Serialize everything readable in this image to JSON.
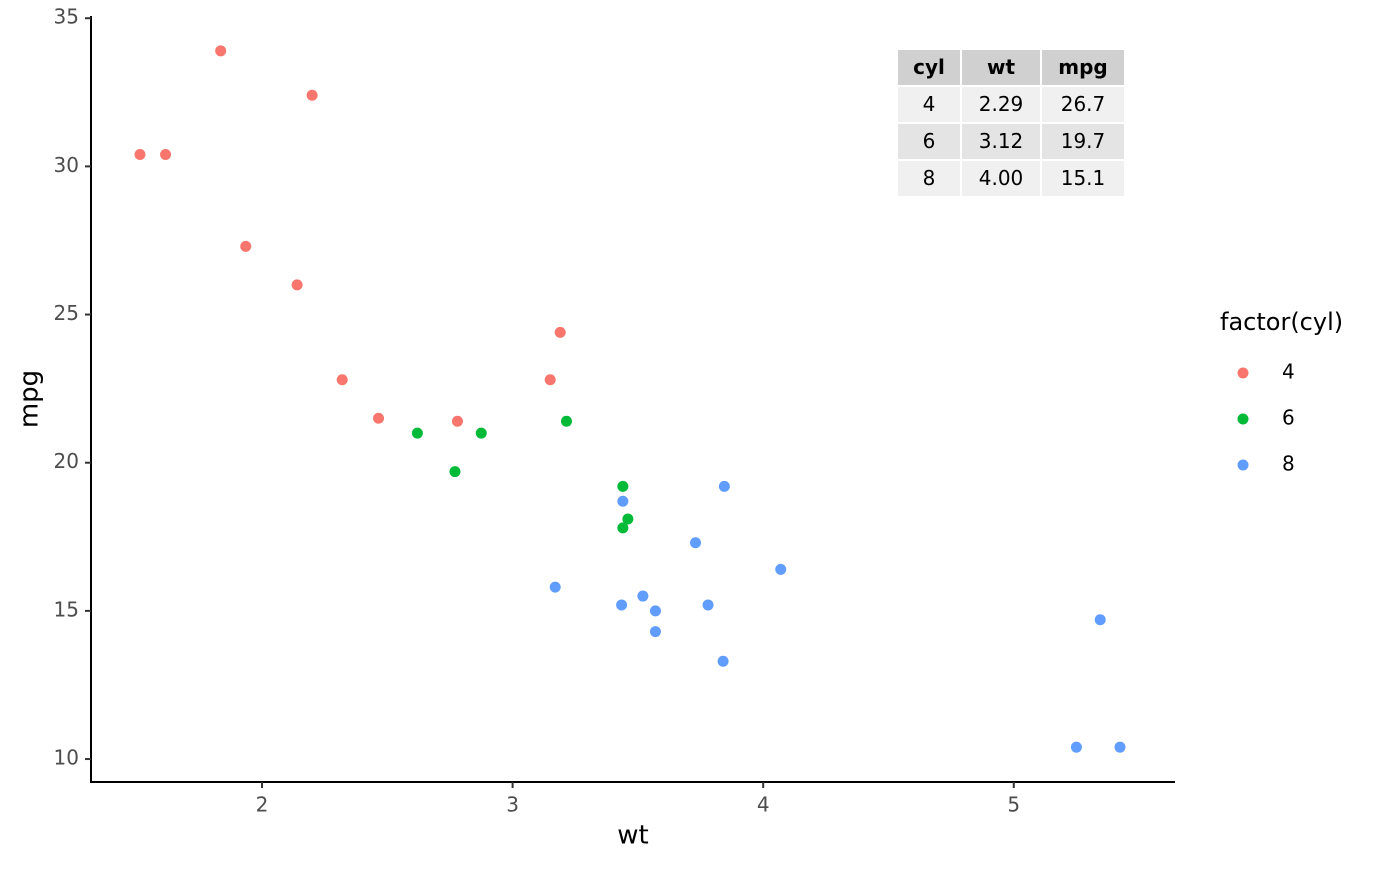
{
  "chart_data": {
    "type": "scatter",
    "x_label": "wt",
    "y_label": "mpg",
    "legend_title": "factor(cyl)",
    "legend_position": "right",
    "xlim": [
      1.3175,
      5.6195
    ],
    "ylim": [
      9.225,
      35.075
    ],
    "xticks": [
      2,
      3,
      4,
      5
    ],
    "yticks": [
      10,
      15,
      20,
      25,
      30,
      35
    ],
    "grid": false,
    "series": [
      {
        "name": "4",
        "color": "#F8766D",
        "x": [
          2.32,
          3.19,
          3.15,
          2.2,
          1.615,
          1.835,
          2.465,
          1.935,
          2.14,
          1.513,
          2.78
        ],
        "values": [
          22.8,
          24.4,
          22.8,
          32.4,
          30.4,
          33.9,
          21.5,
          27.3,
          26.0,
          30.4,
          21.4
        ]
      },
      {
        "name": "6",
        "color": "#00BA38",
        "x": [
          2.62,
          2.875,
          3.215,
          3.46,
          3.44,
          3.44,
          2.77
        ],
        "values": [
          21.0,
          21.0,
          21.4,
          18.1,
          19.2,
          17.8,
          19.7
        ]
      },
      {
        "name": "8",
        "color": "#619CFF",
        "x": [
          3.44,
          3.57,
          4.07,
          3.73,
          3.78,
          5.25,
          5.424,
          5.345,
          3.52,
          3.435,
          3.84,
          3.845,
          3.17,
          3.57
        ],
        "values": [
          18.7,
          14.3,
          16.4,
          17.3,
          15.2,
          10.4,
          10.4,
          14.7,
          15.5,
          15.2,
          13.3,
          19.2,
          15.8,
          15.0
        ]
      }
    ],
    "table": {
      "columns": [
        "cyl",
        "wt",
        "mpg"
      ],
      "rows": [
        [
          "4",
          "2.29",
          "26.7"
        ],
        [
          "6",
          "3.12",
          "19.7"
        ],
        [
          "8",
          "4.00",
          "15.1"
        ]
      ]
    }
  }
}
